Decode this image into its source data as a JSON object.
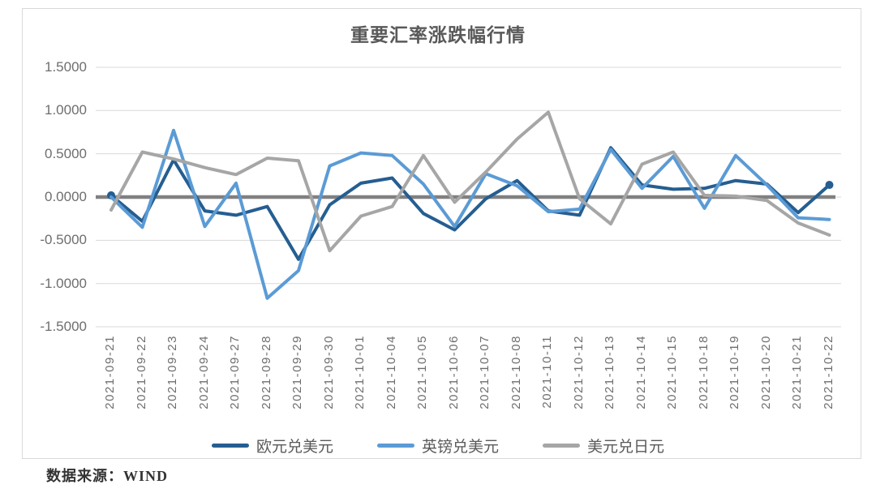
{
  "chart_data": {
    "type": "line",
    "title": "重要汇率涨跌幅行情",
    "source_note": "数据来源：WIND",
    "grid": "horizontal",
    "legend_position": "bottom",
    "ylim": [
      -1.5,
      1.5
    ],
    "ytick_step": 0.5,
    "ytick_labels": [
      "1.5000",
      "1.0000",
      "0.5000",
      "0.0000",
      "-0.5000",
      "-1.0000",
      "-1.5000"
    ],
    "zero_line": true,
    "x": [
      "2021-09-21",
      "2021-09-22",
      "2021-09-23",
      "2021-09-24",
      "2021-09-27",
      "2021-09-28",
      "2021-09-29",
      "2021-09-30",
      "2021-10-01",
      "2021-10-04",
      "2021-10-05",
      "2021-10-06",
      "2021-10-07",
      "2021-10-08",
      "2021-10-11",
      "2021-10-12",
      "2021-10-13",
      "2021-10-14",
      "2021-10-15",
      "2021-10-18",
      "2021-10-19",
      "2021-10-20",
      "2021-10-21",
      "2021-10-22"
    ],
    "series": [
      {
        "name": "欧元兑美元",
        "color": "#255E91",
        "markers": "endpoints",
        "values": [
          0.02,
          -0.28,
          0.43,
          -0.16,
          -0.21,
          -0.11,
          -0.72,
          -0.09,
          0.16,
          0.22,
          -0.19,
          -0.38,
          -0.02,
          0.19,
          -0.16,
          -0.21,
          0.57,
          0.14,
          0.09,
          0.1,
          0.19,
          0.15,
          -0.18,
          0.14
        ]
      },
      {
        "name": "英镑兑美元",
        "color": "#5B9BD5",
        "markers": "none",
        "values": [
          0.0,
          -0.35,
          0.77,
          -0.34,
          0.16,
          -1.17,
          -0.85,
          0.36,
          0.51,
          0.48,
          0.15,
          -0.34,
          0.27,
          0.13,
          -0.17,
          -0.14,
          0.55,
          0.1,
          0.47,
          -0.13,
          0.48,
          0.14,
          -0.24,
          -0.26
        ]
      },
      {
        "name": "美元兑日元",
        "color": "#A6A6A6",
        "markers": "none",
        "values": [
          -0.15,
          0.52,
          0.44,
          0.34,
          0.26,
          0.45,
          0.42,
          -0.62,
          -0.22,
          -0.11,
          0.48,
          -0.06,
          0.29,
          0.67,
          0.98,
          -0.02,
          -0.31,
          0.38,
          0.52,
          0.02,
          0.01,
          -0.04,
          -0.3,
          -0.44
        ]
      }
    ],
    "style_colors": {
      "gridline": "#d9d9d9",
      "zero_axis": "#808080",
      "title_text": "#595959",
      "tick_text": "#6e6e6e"
    }
  }
}
